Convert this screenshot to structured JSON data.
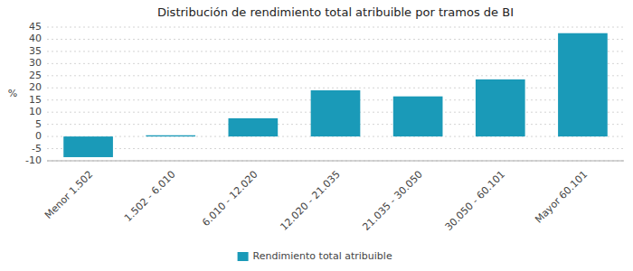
{
  "chart_data": {
    "type": "bar",
    "title": "Distribución de rendimiento total atribuible por tramos de BI",
    "categories": [
      "Menor 1.502",
      "1.502 - 6.010",
      "6.010 - 12.020",
      "12.020 - 21.035",
      "21.035 - 30.050",
      "30.050 - 60.101",
      "Mayor 60.101"
    ],
    "series": [
      {
        "name": "Rendimiento total atribuible",
        "color": "#1a9ab8",
        "values": [
          -8.5,
          0.5,
          7.5,
          19.0,
          16.5,
          23.5,
          42.5
        ]
      }
    ],
    "ylabel": "%",
    "ylim": [
      -10,
      45
    ],
    "yticks": [
      -10,
      -5,
      0,
      5,
      10,
      15,
      20,
      25,
      30,
      35,
      40,
      45
    ],
    "grid": true,
    "legend": "bottom"
  }
}
